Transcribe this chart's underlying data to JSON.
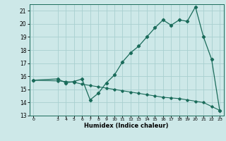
{
  "title": "",
  "xlabel": "Humidex (Indice chaleur)",
  "background_color": "#cde8e8",
  "line_color": "#1a6b5a",
  "grid_color": "#a8d0d0",
  "xlim": [
    -0.5,
    23.5
  ],
  "ylim": [
    13,
    21.5
  ],
  "yticks": [
    13,
    14,
    15,
    16,
    17,
    18,
    19,
    20,
    21
  ],
  "xticks": [
    0,
    3,
    4,
    5,
    6,
    7,
    8,
    9,
    10,
    11,
    12,
    13,
    14,
    15,
    16,
    17,
    18,
    19,
    20,
    21,
    22,
    23
  ],
  "humidex_x": [
    0,
    3,
    4,
    5,
    6,
    7,
    8,
    9,
    10,
    11,
    12,
    13,
    14,
    15,
    16,
    17,
    18,
    19,
    20,
    21,
    22,
    23
  ],
  "humidex_y": [
    15.7,
    15.8,
    15.5,
    15.6,
    15.8,
    14.2,
    14.7,
    15.5,
    16.1,
    17.1,
    17.8,
    18.3,
    19.0,
    19.7,
    20.3,
    19.9,
    20.3,
    20.2,
    21.3,
    19.0,
    17.3,
    13.4
  ],
  "ref_x": [
    0,
    3,
    4,
    5,
    6,
    7,
    8,
    9,
    10,
    11,
    12,
    13,
    14,
    15,
    16,
    17,
    18,
    19,
    20,
    21,
    22,
    23
  ],
  "ref_y": [
    15.7,
    15.65,
    15.6,
    15.55,
    15.4,
    15.3,
    15.2,
    15.1,
    15.0,
    14.9,
    14.8,
    14.7,
    14.6,
    14.5,
    14.4,
    14.35,
    14.3,
    14.2,
    14.1,
    14.0,
    13.7,
    13.4
  ]
}
